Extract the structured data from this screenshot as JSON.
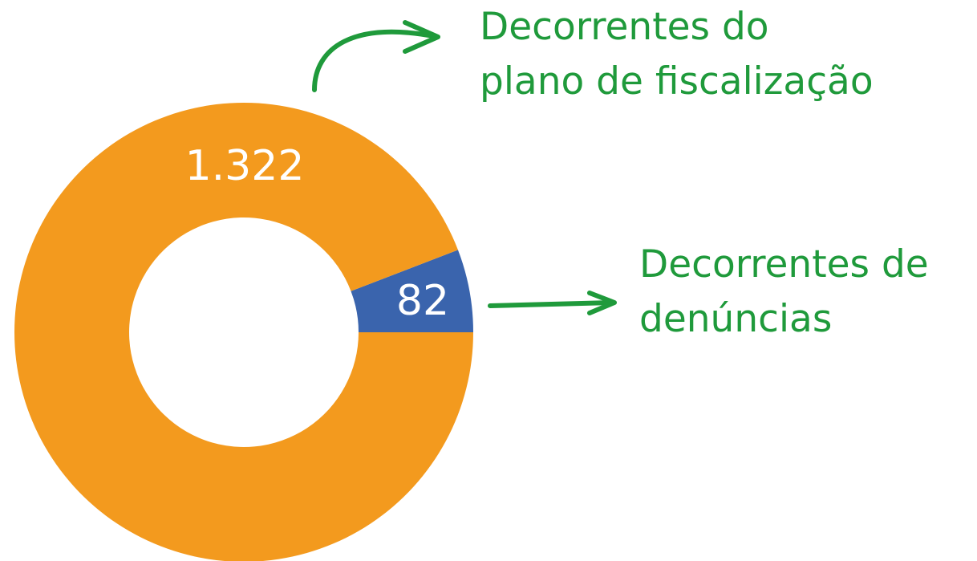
{
  "chart_data": {
    "type": "donut",
    "categories": [
      "Decorrentes do\nplano de fiscalização",
      "Decorrentes de\ndenúncias"
    ],
    "values": [
      1322,
      82
    ],
    "value_labels": [
      "1.322",
      "82"
    ],
    "colors": [
      "#f39a1e",
      "#3a64ad"
    ]
  }
}
